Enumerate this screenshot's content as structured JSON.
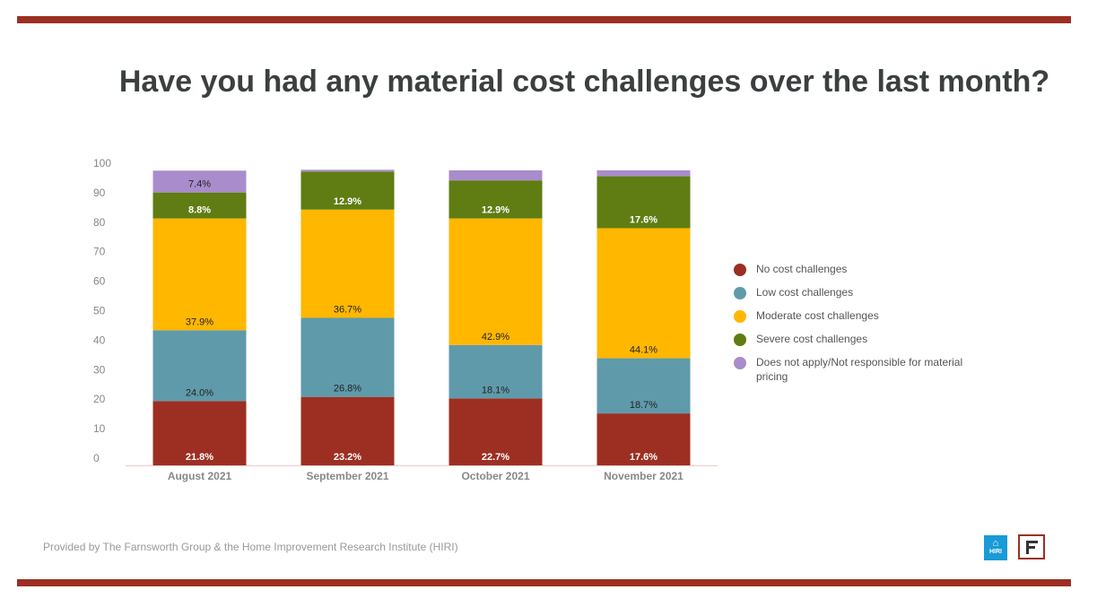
{
  "title": "Have you had any material cost challenges over the last month?",
  "footer": "Provided by The Farnsworth Group & the Home Improvement Research Institute (HIRI)",
  "logos": {
    "hiri_text": "HIRI"
  },
  "chart_data": {
    "type": "bar",
    "stacked": true,
    "categories": [
      "August 2021",
      "September 2021",
      "October 2021",
      "November 2021"
    ],
    "ylim": [
      0,
      100
    ],
    "yticks": [
      0,
      10,
      20,
      30,
      40,
      50,
      60,
      70,
      80,
      90,
      100
    ],
    "grid": false,
    "legend_position": "right",
    "series": [
      {
        "name": "No cost challenges",
        "color": "#9c2f22",
        "label_color": "#ffffff",
        "values": [
          21.8,
          23.2,
          22.7,
          17.6
        ],
        "labels": [
          "21.8%",
          "23.2%",
          "22.7%",
          "17.6%"
        ]
      },
      {
        "name": "Low cost challenges",
        "color": "#5f9aab",
        "label_color": "#222222",
        "values": [
          24.0,
          26.8,
          18.1,
          18.7
        ],
        "labels": [
          "24.0%",
          "26.8%",
          "18.1%",
          "18.7%"
        ]
      },
      {
        "name": "Moderate cost challenges",
        "color": "#ffb700",
        "label_color": "#222222",
        "values": [
          37.9,
          36.7,
          42.9,
          44.1
        ],
        "labels": [
          "37.9%",
          "36.7%",
          "42.9%",
          "44.1%"
        ]
      },
      {
        "name": "Severe cost challenges",
        "color": "#5f7d12",
        "label_color": "#ffffff",
        "values": [
          8.8,
          12.9,
          12.9,
          17.6
        ],
        "labels": [
          "8.8%",
          "12.9%",
          "12.9%",
          "17.6%"
        ]
      },
      {
        "name": "Does not apply/Not responsible for material pricing",
        "color": "#a98ccb",
        "label_color": "#222222",
        "values": [
          7.4,
          0.6,
          3.4,
          2.0
        ],
        "labels": [
          "7.4%",
          "",
          "",
          ""
        ]
      }
    ]
  }
}
